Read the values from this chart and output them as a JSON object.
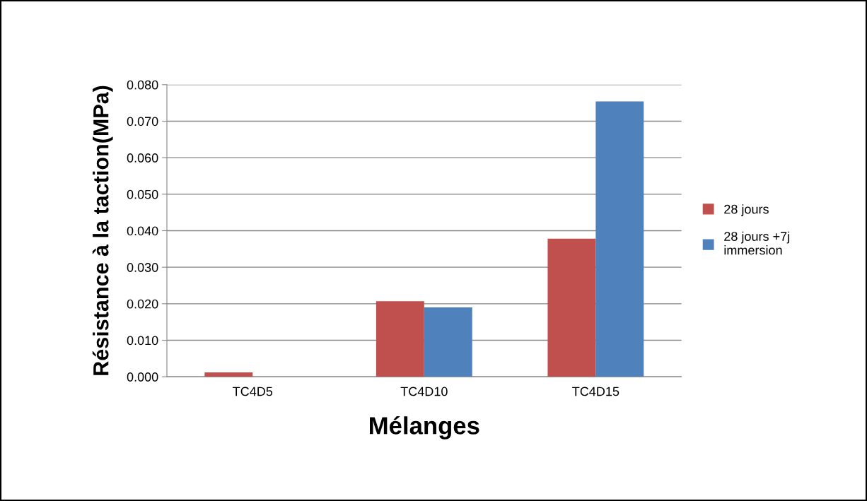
{
  "chart_data": {
    "type": "bar",
    "xlabel": "Mélanges",
    "ylabel": "Résistance à la taction(MPa)",
    "categories": [
      "TC4D5",
      "TC4D10",
      "TC4D15"
    ],
    "series": [
      {
        "name": "28 jours",
        "color": "#c0504d",
        "values": [
          0.0012,
          0.0207,
          0.0378
        ]
      },
      {
        "name": "28 jours +7j\nimmersion",
        "color": "#4f81bd",
        "values": [
          0,
          0.019,
          0.0754
        ]
      }
    ],
    "ylim": [
      0,
      0.08
    ],
    "yticks": [
      {
        "value": 0,
        "label": "0.000"
      },
      {
        "value": 0.01,
        "label": "0.010"
      },
      {
        "value": 0.02,
        "label": "0.020"
      },
      {
        "value": 0.03,
        "label": "0.030"
      },
      {
        "value": 0.04,
        "label": "0.040"
      },
      {
        "value": 0.05,
        "label": "0.050"
      },
      {
        "value": 0.06,
        "label": "0.060"
      },
      {
        "value": 0.07,
        "label": "0.070"
      },
      {
        "value": 0.08,
        "label": "0.080"
      }
    ],
    "grid": "y",
    "legend": "right"
  }
}
